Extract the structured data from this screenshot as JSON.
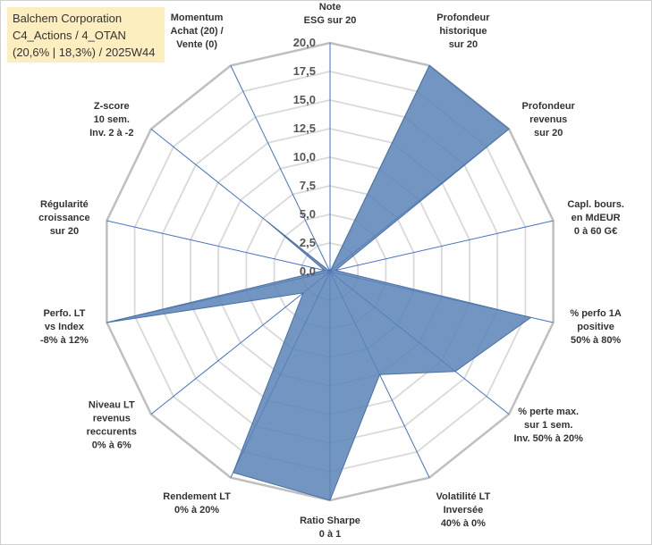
{
  "header": {
    "line1": "Balchem Corporation",
    "line2": "C4_Actions / 4_OTAN",
    "line3": "(20,6% | 18,3%) / 2025W44"
  },
  "chart_data": {
    "type": "radar",
    "title": "Balchem Corporation C4_Actions / 4_OTAN (20,6% | 18,3%) / 2025W44",
    "rmin": 0,
    "rmax": 20,
    "ticks": [
      "0,0",
      "2,5",
      "5,0",
      "7,5",
      "10,0",
      "12,5",
      "15,0",
      "17,5",
      "20,0"
    ],
    "grid": true,
    "colors": {
      "fill": "#5a82b6",
      "stroke": "#4a72a6",
      "grid": "#d9d9d9",
      "outer": "#bfbfbf",
      "spoke": "#4472c4"
    },
    "axes": [
      {
        "lines": [
          "Note",
          "ESG sur 20"
        ]
      },
      {
        "lines": [
          "Profondeur",
          "historique",
          "sur 20"
        ]
      },
      {
        "lines": [
          "Profondeur",
          "revenus",
          "sur 20"
        ]
      },
      {
        "lines": [
          "Capl. bours.",
          "en MdEUR",
          "0 à 60 G€"
        ]
      },
      {
        "lines": [
          "% perfo 1A",
          "positive",
          "50% à 80%"
        ]
      },
      {
        "lines": [
          "% perte max.",
          "sur 1 sem.",
          "Inv. 50% à 20%"
        ]
      },
      {
        "lines": [
          "Volatilité LT",
          "Inversée",
          "40% à 0%"
        ]
      },
      {
        "lines": [
          "Ratio Sharpe",
          "0 à 1"
        ]
      },
      {
        "lines": [
          "Rendement LT",
          "0% à 20%"
        ]
      },
      {
        "lines": [
          "Niveau LT",
          "revenus",
          "reccurents",
          "0% à 6%"
        ]
      },
      {
        "lines": [
          "Perfo. LT",
          "vs Index",
          "-8% à 12%"
        ]
      },
      {
        "lines": [
          "Régularité",
          "croissance",
          "sur 20"
        ]
      },
      {
        "lines": [
          "Z-score",
          "10 sem.",
          "Inv. 2 à -2"
        ]
      },
      {
        "lines": [
          "Momentum",
          "Achat (20) /",
          "Vente (0)"
        ]
      }
    ],
    "series": [
      {
        "values": [
          0,
          20,
          20,
          0.5,
          18,
          14,
          10,
          20,
          19.5,
          3,
          20,
          0.5,
          7,
          0
        ]
      }
    ]
  }
}
